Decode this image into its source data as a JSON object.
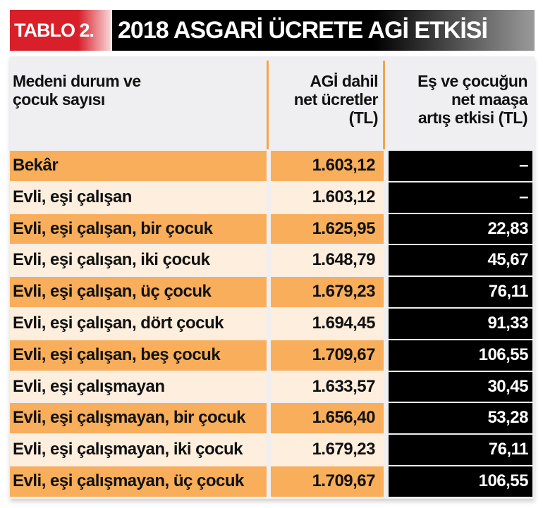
{
  "title": {
    "badge": "TABLO 2.",
    "main": "2018 ASGARİ ÜCRETE AGİ ETKİSİ"
  },
  "colors": {
    "badge_red": "#d9202a",
    "title_black": "#000000",
    "row_orange": "#f8ae5a",
    "row_cream": "#fdeedd",
    "header_bg": "#efeff1",
    "divider_orange": "#f5a54a",
    "effect_bg": "#000000"
  },
  "table": {
    "headers": {
      "col1_line1": "Medeni durum ve",
      "col1_line2": "çocuk sayısı",
      "col2_line1": "AGİ dahil",
      "col2_line2": "net ücretler",
      "col2_line3": "(TL)",
      "col3_line1": "Eş ve çocuğun",
      "col3_line2": "net maaşa",
      "col3_line3": "artış etkisi (TL)"
    },
    "rows": [
      {
        "label": "Bekâr",
        "net": "1.603,12",
        "effect": "–"
      },
      {
        "label": "Evli, eşi çalışan",
        "net": "1.603,12",
        "effect": "–"
      },
      {
        "label": "Evli, eşi çalışan, bir çocuk",
        "net": "1.625,95",
        "effect": "22,83"
      },
      {
        "label": "Evli, eşi çalışan, iki çocuk",
        "net": "1.648,79",
        "effect": "45,67"
      },
      {
        "label": "Evli, eşi çalışan, üç çocuk",
        "net": "1.679,23",
        "effect": "76,11"
      },
      {
        "label": "Evli, eşi çalışan, dört çocuk",
        "net": "1.694,45",
        "effect": "91,33"
      },
      {
        "label": "Evli, eşi çalışan, beş çocuk",
        "net": "1.709,67",
        "effect": "106,55"
      },
      {
        "label": "Evli, eşi çalışmayan",
        "net": "1.633,57",
        "effect": "30,45"
      },
      {
        "label": "Evli, eşi çalışmayan, bir çocuk",
        "net": "1.656,40",
        "effect": "53,28"
      },
      {
        "label": "Evli, eşi çalışmayan, iki çocuk",
        "net": "1.679,23",
        "effect": "76,11"
      },
      {
        "label": "Evli, eşi çalışmayan, üç çocuk",
        "net": "1.709,67",
        "effect": "106,55"
      }
    ]
  }
}
